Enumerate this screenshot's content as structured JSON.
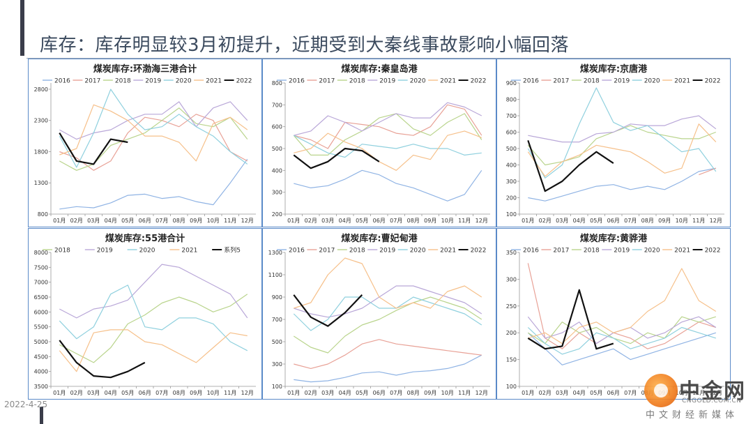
{
  "page": {
    "title": "库存：库存明显较3月初提升，近期受到大秦线事故影响小幅回落",
    "date": "2022-4-25"
  },
  "watermark": {
    "title": "中金网",
    "url": "CNGOLD.COM.CN",
    "subtitle": "中文财经新媒体"
  },
  "colors": {
    "2016": "#8fb3e4",
    "2017": "#e8a196",
    "2018": "#b9d48c",
    "2019": "#b9a7d8",
    "2020": "#8fd0de",
    "2021": "#f6c08a",
    "2022": "#111111",
    "系列5": "#111111"
  },
  "months": [
    "01月",
    "02月",
    "03月",
    "04月",
    "05月",
    "06月",
    "07月",
    "08月",
    "09月",
    "10月",
    "11月",
    "12月"
  ],
  "chart_data": [
    {
      "type": "line",
      "title": "煤炭库存:环渤海三港合计",
      "legend": [
        "2016",
        "2017",
        "2018",
        "2019",
        "2020",
        "2021",
        "2022"
      ],
      "yticks": [
        800,
        1300,
        1800,
        2300,
        2800
      ],
      "ylim": [
        800,
        2900
      ],
      "series": [
        {
          "name": "2016",
          "values": [
            880,
            920,
            900,
            980,
            1100,
            1120,
            1050,
            1080,
            1000,
            950,
            1300,
            1680
          ]
        },
        {
          "name": "2017",
          "values": [
            1800,
            1700,
            1500,
            1650,
            2100,
            2350,
            2300,
            2200,
            2400,
            2300,
            1800,
            1650
          ]
        },
        {
          "name": "2018",
          "values": [
            1650,
            1500,
            1600,
            1900,
            2000,
            2100,
            2300,
            2500,
            2250,
            2200,
            2350,
            2000
          ]
        },
        {
          "name": "2019",
          "values": [
            2150,
            2000,
            2100,
            2150,
            2300,
            2400,
            2400,
            2600,
            2200,
            2500,
            2600,
            2300
          ]
        },
        {
          "name": "2020",
          "values": [
            2050,
            1550,
            2100,
            2800,
            2400,
            2150,
            2200,
            2400,
            2200,
            2050,
            1800,
            1600
          ]
        },
        {
          "name": "2021",
          "values": [
            1750,
            1850,
            2550,
            2450,
            2300,
            2050,
            2050,
            1950,
            1650,
            2250,
            2350,
            2150
          ]
        },
        {
          "name": "2022",
          "values": [
            2100,
            1650,
            1600,
            2000,
            1950
          ]
        }
      ]
    },
    {
      "type": "line",
      "title": "煤炭库存:秦皇岛港",
      "legend": [
        "2016",
        "2017",
        "2018",
        "2019",
        "2020",
        "2021",
        "2022"
      ],
      "yticks": [
        200,
        300,
        400,
        500,
        600,
        700,
        800
      ],
      "ylim": [
        200,
        800
      ],
      "series": [
        {
          "name": "2016",
          "values": [
            340,
            320,
            330,
            360,
            400,
            380,
            340,
            320,
            290,
            260,
            290,
            400
          ]
        },
        {
          "name": "2017",
          "values": [
            560,
            540,
            500,
            620,
            610,
            600,
            570,
            560,
            600,
            700,
            680,
            560
          ]
        },
        {
          "name": "2018",
          "values": [
            560,
            470,
            470,
            540,
            580,
            640,
            660,
            590,
            560,
            620,
            660,
            540
          ]
        },
        {
          "name": "2019",
          "values": [
            560,
            580,
            650,
            620,
            580,
            620,
            660,
            640,
            640,
            710,
            690,
            650
          ]
        },
        {
          "name": "2020",
          "values": [
            560,
            520,
            480,
            460,
            520,
            510,
            500,
            520,
            500,
            500,
            470,
            480
          ]
        },
        {
          "name": "2021",
          "values": [
            480,
            500,
            570,
            530,
            500,
            440,
            400,
            470,
            450,
            560,
            580,
            550
          ]
        },
        {
          "name": "2022",
          "values": [
            470,
            410,
            440,
            500,
            490,
            440
          ]
        }
      ]
    },
    {
      "type": "line",
      "title": "煤炭库存:京唐港",
      "legend": [
        "2016",
        "2017",
        "2018",
        "2019",
        "2020",
        "2021",
        "2022"
      ],
      "yticks": [
        100,
        200,
        300,
        400,
        500,
        600,
        700,
        800,
        900
      ],
      "ylim": [
        100,
        900
      ],
      "series": [
        {
          "name": "2016",
          "values": [
            200,
            180,
            210,
            240,
            270,
            280,
            250,
            270,
            250,
            300,
            360,
            380
          ]
        },
        {
          "name": "2017",
          "values": [
            null,
            null,
            null,
            null,
            null,
            null,
            null,
            null,
            null,
            null,
            340,
            380
          ]
        },
        {
          "name": "2018",
          "values": [
            520,
            400,
            420,
            450,
            560,
            600,
            640,
            600,
            580,
            560,
            560,
            600
          ]
        },
        {
          "name": "2019",
          "values": [
            580,
            560,
            540,
            540,
            590,
            600,
            650,
            640,
            640,
            680,
            700,
            620
          ]
        },
        {
          "name": "2020",
          "values": [
            500,
            320,
            400,
            650,
            870,
            660,
            610,
            640,
            560,
            480,
            500,
            360
          ]
        },
        {
          "name": "2021",
          "values": [
            480,
            330,
            420,
            460,
            520,
            500,
            480,
            420,
            350,
            380,
            650,
            540
          ]
        },
        {
          "name": "2022",
          "values": [
            550,
            240,
            300,
            400,
            480,
            410
          ]
        }
      ]
    },
    {
      "type": "line",
      "title": "煤炭库存:55港合计",
      "legend": [
        "2018",
        "2019",
        "2020",
        "2021",
        "系列5"
      ],
      "yticks": [
        3500,
        4000,
        4500,
        5000,
        5500,
        6000,
        6500,
        7000,
        7500,
        8000
      ],
      "ylim": [
        3500,
        8000
      ],
      "series": [
        {
          "name": "2018",
          "values": [
            4900,
            4600,
            4300,
            4800,
            5600,
            5900,
            6300,
            6500,
            6300,
            6000,
            6200,
            6600
          ]
        },
        {
          "name": "2019",
          "values": [
            6100,
            5800,
            6100,
            6200,
            6400,
            7000,
            7600,
            7500,
            7200,
            6900,
            6600,
            5800
          ]
        },
        {
          "name": "2020",
          "values": [
            5700,
            5100,
            5500,
            6600,
            6900,
            5500,
            5400,
            5800,
            5800,
            5600,
            5000,
            4700
          ]
        },
        {
          "name": "2021",
          "values": [
            4700,
            4000,
            5300,
            5400,
            5400,
            5000,
            4900,
            4600,
            4300,
            4800,
            5300,
            5200
          ]
        },
        {
          "name": "系列5",
          "values": [
            5050,
            4300,
            3850,
            3800,
            4000,
            4300
          ]
        }
      ]
    },
    {
      "type": "line",
      "title": "煤炭库存:曹妃甸港",
      "legend": [
        "2016",
        "2017",
        "2018",
        "2019",
        "2020",
        "2021",
        "2022"
      ],
      "yticks": [
        100,
        300,
        500,
        700,
        900,
        1100,
        1300
      ],
      "ylim": [
        100,
        1300
      ],
      "series": [
        {
          "name": "2016",
          "values": [
            160,
            140,
            150,
            180,
            220,
            230,
            200,
            230,
            240,
            260,
            300,
            380
          ]
        },
        {
          "name": "2017",
          "values": [
            300,
            260,
            300,
            380,
            480,
            520,
            480,
            460,
            440,
            420,
            400,
            380
          ]
        },
        {
          "name": "2018",
          "values": [
            550,
            450,
            400,
            550,
            650,
            700,
            780,
            850,
            900,
            850,
            800,
            700
          ]
        },
        {
          "name": "2019",
          "values": [
            800,
            750,
            720,
            750,
            800,
            900,
            1000,
            1000,
            950,
            900,
            850,
            750
          ]
        },
        {
          "name": "2020",
          "values": [
            750,
            600,
            700,
            900,
            900,
            800,
            800,
            900,
            850,
            800,
            750,
            650
          ]
        },
        {
          "name": "2021",
          "values": [
            800,
            850,
            1100,
            1250,
            1200,
            900,
            800,
            850,
            800,
            950,
            1000,
            900
          ]
        },
        {
          "name": "2022",
          "values": [
            920,
            720,
            640,
            760,
            920
          ]
        }
      ]
    },
    {
      "type": "line",
      "title": "煤炭库存:黄骅港",
      "legend": [
        "2016",
        "2017",
        "2018",
        "2019",
        "2020",
        "2021",
        "2022"
      ],
      "yticks": [
        100,
        150,
        200,
        250,
        300,
        350
      ],
      "ylim": [
        100,
        350
      ],
      "series": [
        {
          "name": "2016",
          "values": [
            200,
            170,
            140,
            150,
            160,
            170,
            150,
            160,
            170,
            180,
            190,
            200
          ]
        },
        {
          "name": "2017",
          "values": [
            330,
            190,
            170,
            200,
            180,
            200,
            190,
            170,
            180,
            200,
            220,
            210
          ]
        },
        {
          "name": "2018",
          "values": [
            200,
            180,
            220,
            200,
            210,
            190,
            180,
            200,
            190,
            230,
            220,
            230
          ]
        },
        {
          "name": "2019",
          "values": [
            230,
            190,
            200,
            220,
            180,
            200,
            210,
            190,
            200,
            220,
            230,
            210
          ]
        },
        {
          "name": "2020",
          "values": [
            210,
            180,
            160,
            170,
            200,
            190,
            170,
            180,
            190,
            210,
            200,
            190
          ]
        },
        {
          "name": "2021",
          "values": [
            190,
            200,
            180,
            210,
            220,
            200,
            210,
            240,
            260,
            320,
            260,
            240
          ]
        },
        {
          "name": "2022",
          "values": [
            190,
            170,
            175,
            280,
            170,
            180
          ]
        }
      ]
    }
  ]
}
